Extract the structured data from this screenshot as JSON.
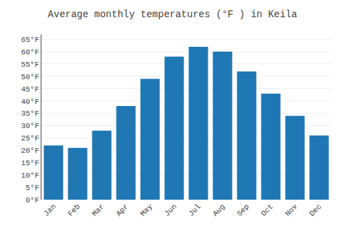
{
  "chart_data": {
    "type": "bar",
    "title": "Average monthly temperatures (°F ) in Keila",
    "categories": [
      "Jan",
      "Feb",
      "Mar",
      "Apr",
      "May",
      "Jun",
      "Jul",
      "Aug",
      "Sep",
      "Oct",
      "Nov",
      "Dec"
    ],
    "values": [
      22,
      21,
      28,
      38,
      49,
      58,
      62,
      60,
      52,
      43,
      34,
      26
    ],
    "ylim": [
      0,
      67
    ],
    "yticks": [
      {
        "value": 0,
        "label": "0°F"
      },
      {
        "value": 5,
        "label": "5°F"
      },
      {
        "value": 10,
        "label": "10°F"
      },
      {
        "value": 15,
        "label": "15°F"
      },
      {
        "value": 20,
        "label": "20°F"
      },
      {
        "value": 25,
        "label": "25°F"
      },
      {
        "value": 30,
        "label": "30°F"
      },
      {
        "value": 35,
        "label": "35°F"
      },
      {
        "value": 40,
        "label": "40°F"
      },
      {
        "value": 45,
        "label": "45°F"
      },
      {
        "value": 50,
        "label": "50°F"
      },
      {
        "value": 55,
        "label": "55°F"
      },
      {
        "value": 60,
        "label": "60°F"
      },
      {
        "value": 65,
        "label": "65°F"
      }
    ],
    "grid": true
  }
}
